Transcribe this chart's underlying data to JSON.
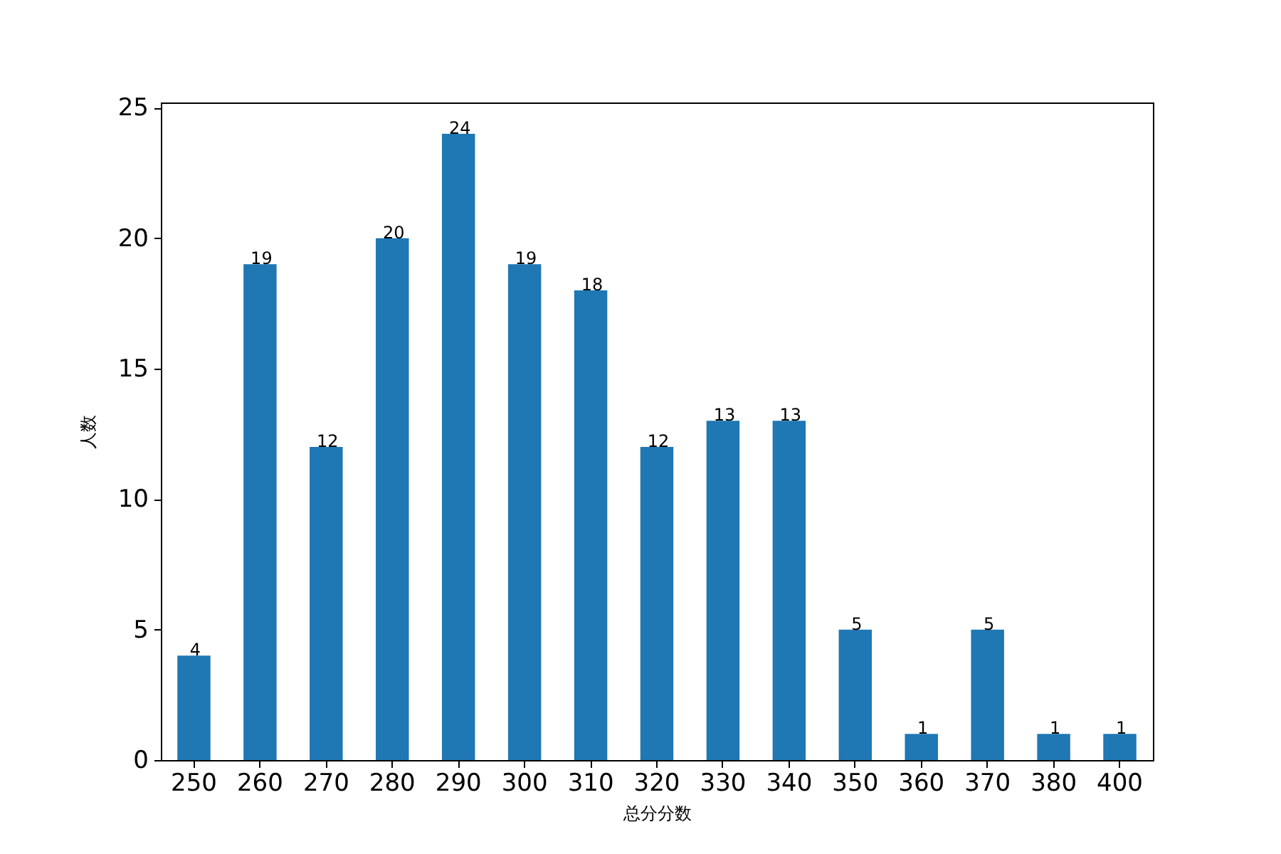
{
  "chart_data": {
    "type": "bar",
    "xlabel": "总分分数",
    "ylabel": "人数",
    "categories": [
      "250",
      "260",
      "270",
      "280",
      "290",
      "300",
      "310",
      "320",
      "330",
      "340",
      "350",
      "360",
      "370",
      "380",
      "400"
    ],
    "values": [
      4,
      19,
      12,
      20,
      24,
      19,
      18,
      12,
      13,
      13,
      5,
      1,
      5,
      1,
      1
    ],
    "color": "#1f77b4",
    "ylim": [
      0,
      25.2
    ],
    "yticks": [
      0,
      5,
      10,
      15,
      20,
      25
    ],
    "grid": false,
    "data_labels": true
  }
}
